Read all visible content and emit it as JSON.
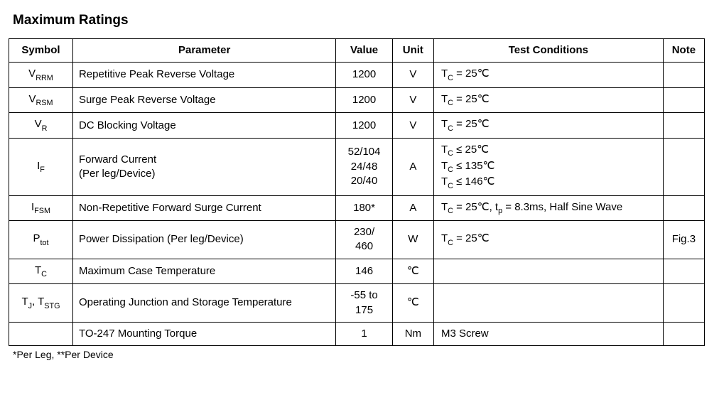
{
  "title": "Maximum Ratings",
  "headers": {
    "symbol": "Symbol",
    "parameter": "Parameter",
    "value": "Value",
    "unit": "Unit",
    "test": "Test Conditions",
    "note": "Note"
  },
  "rows": {
    "r1": {
      "sym_main": "V",
      "sym_sub": "RRM",
      "param": "Repetitive Peak Reverse Voltage",
      "value": "1200",
      "unit": "V",
      "tc_label": "T",
      "tc_sub": "C",
      "tc_rest": " = 25℃",
      "note": ""
    },
    "r2": {
      "sym_main": "V",
      "sym_sub": "RSM",
      "param": "Surge Peak Reverse Voltage",
      "value": "1200",
      "unit": "V",
      "tc_label": "T",
      "tc_sub": "C",
      "tc_rest": " = 25℃",
      "note": ""
    },
    "r3": {
      "sym_main": "V",
      "sym_sub": "R",
      "param": "DC Blocking Voltage",
      "value": "1200",
      "unit": "V",
      "tc_label": "T",
      "tc_sub": "C",
      "tc_rest": " = 25℃",
      "note": ""
    },
    "r4": {
      "sym_main": "I",
      "sym_sub": "F",
      "param_l1": "Forward Current",
      "param_l2": "(Per leg/Device)",
      "val_l1": "52/104",
      "val_l2": "24/48",
      "val_l3": "20/40",
      "unit": "A",
      "tc1_rest": " ≤ 25℃",
      "tc2_rest": " ≤ 135℃",
      "tc3_rest": " ≤ 146℃",
      "note": ""
    },
    "r5": {
      "sym_main": "I",
      "sym_sub": "FSM",
      "param": "Non-Repetitive Forward Surge Current",
      "value": "180*",
      "unit": "A",
      "tc_part1": " = 25℃, t",
      "tc_mid_sub": "p",
      "tc_part2": " = 8.3ms, Half Sine Wave",
      "note": ""
    },
    "r6": {
      "sym_main": "P",
      "sym_sub": "tot",
      "param": "Power Dissipation (Per leg/Device)",
      "val_l1": "230/",
      "val_l2": "460",
      "unit": "W",
      "tc_rest": " = 25℃",
      "note": "Fig.3"
    },
    "r7": {
      "sym_main": "T",
      "sym_sub": "C",
      "param": "Maximum Case Temperature",
      "value": "146",
      "unit": "℃",
      "test": "",
      "note": ""
    },
    "r8": {
      "s1_main": "T",
      "s1_sub": "J",
      "sep": ", ",
      "s2_main": "T",
      "s2_sub": "STG",
      "param": "Operating Junction and Storage Temperature",
      "val_l1": "-55 to",
      "val_l2": "175",
      "unit": "℃",
      "test": "",
      "note": ""
    },
    "r9": {
      "sym": "",
      "param": "TO-247 Mounting Torque",
      "value": "1",
      "unit": "Nm",
      "test": "M3 Screw",
      "note": ""
    }
  },
  "footnote": "*Per Leg, **Per Device",
  "tc": {
    "T": "T",
    "C": "C"
  }
}
